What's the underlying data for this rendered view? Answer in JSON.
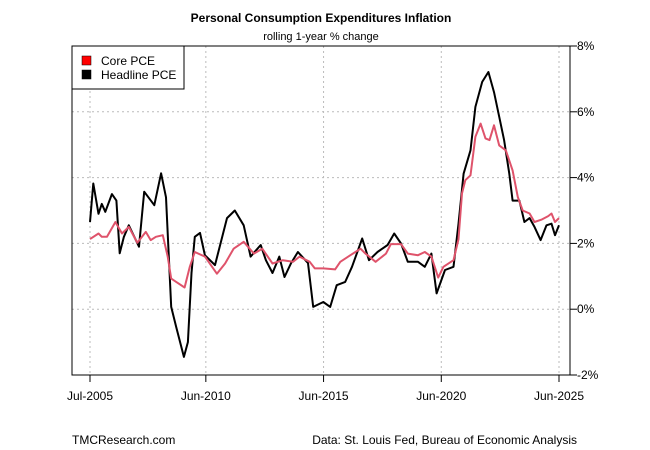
{
  "chart_data": {
    "type": "line",
    "title": "Personal Consumption Expenditures Inflation",
    "subtitle": "rolling 1-year % change",
    "xlabel": "",
    "ylabel": "",
    "ylim": [
      -2,
      8
    ],
    "xlim": [
      2005.5,
      2025.42
    ],
    "grid": true,
    "legend_position": "top-left",
    "y_ticks": [
      {
        "v": -2,
        "label": "-2%"
      },
      {
        "v": 0,
        "label": "0%"
      },
      {
        "v": 2,
        "label": "2%"
      },
      {
        "v": 4,
        "label": "4%"
      },
      {
        "v": 6,
        "label": "6%"
      },
      {
        "v": 8,
        "label": "8%"
      }
    ],
    "x_ticks": [
      {
        "v": 2005.5,
        "label": "Jul-2005"
      },
      {
        "v": 2010.42,
        "label": "Jun-2010"
      },
      {
        "v": 2015.42,
        "label": "Jun-2015"
      },
      {
        "v": 2020.42,
        "label": "Jun-2020"
      },
      {
        "v": 2025.42,
        "label": "Jun-2025"
      }
    ],
    "series": [
      {
        "name": "Core PCE",
        "color": "#DF536B",
        "legend_color": "#FF0000",
        "x": [
          2005.5,
          2005.86,
          2006.0,
          2006.22,
          2006.58,
          2006.86,
          2007.15,
          2007.51,
          2007.87,
          2008.08,
          2008.3,
          2008.59,
          2008.8,
          2008.95,
          2009.16,
          2009.52,
          2009.74,
          2009.95,
          2010.38,
          2010.89,
          2011.24,
          2011.6,
          2012.03,
          2012.46,
          2012.82,
          2013.25,
          2013.69,
          2014.12,
          2014.4,
          2014.83,
          2015.05,
          2015.41,
          2015.91,
          2016.13,
          2016.56,
          2016.99,
          2017.2,
          2017.63,
          2018.07,
          2018.28,
          2018.71,
          2019.0,
          2019.43,
          2019.72,
          2020.0,
          2020.29,
          2020.51,
          2020.94,
          2021.15,
          2021.3,
          2021.44,
          2021.66,
          2021.87,
          2022.09,
          2022.3,
          2022.47,
          2022.66,
          2022.88,
          2023.16,
          2023.45,
          2023.67,
          2023.88,
          2024.17,
          2024.38,
          2024.67,
          2024.96,
          2025.1,
          2025.25,
          2025.42
        ],
        "values": [
          2.13,
          2.3,
          2.2,
          2.2,
          2.65,
          2.3,
          2.5,
          2.02,
          2.35,
          2.1,
          2.2,
          2.25,
          1.6,
          0.93,
          0.83,
          0.66,
          1.29,
          1.74,
          1.6,
          1.08,
          1.39,
          1.84,
          2.05,
          1.69,
          1.84,
          1.39,
          1.49,
          1.44,
          1.6,
          1.44,
          1.24,
          1.24,
          1.21,
          1.44,
          1.64,
          1.84,
          1.69,
          1.44,
          1.69,
          1.98,
          1.98,
          1.69,
          1.64,
          1.74,
          1.6,
          0.96,
          1.29,
          1.49,
          2.13,
          3.52,
          3.92,
          4.07,
          5.24,
          5.64,
          5.19,
          5.14,
          5.59,
          4.98,
          4.83,
          4.22,
          3.41,
          3.0,
          2.91,
          2.65,
          2.72,
          2.83,
          2.91,
          2.65,
          2.77
        ]
      },
      {
        "name": "Headline PCE",
        "color": "#000000",
        "legend_color": "#000000",
        "x": [
          2005.5,
          2005.64,
          2005.86,
          2006.0,
          2006.15,
          2006.43,
          2006.62,
          2006.76,
          2006.94,
          2007.15,
          2007.58,
          2007.8,
          2008.23,
          2008.52,
          2008.73,
          2008.95,
          2009.16,
          2009.49,
          2009.66,
          2009.81,
          2009.95,
          2010.17,
          2010.38,
          2010.81,
          2011.32,
          2011.65,
          2012.03,
          2012.32,
          2012.75,
          2012.97,
          2013.25,
          2013.54,
          2013.76,
          2014.04,
          2014.33,
          2014.76,
          2014.98,
          2015.41,
          2015.7,
          2015.98,
          2016.34,
          2016.63,
          2017.06,
          2017.35,
          2017.71,
          2018.14,
          2018.42,
          2018.71,
          2019.0,
          2019.43,
          2019.72,
          2020.0,
          2020.22,
          2020.58,
          2020.94,
          2021.15,
          2021.37,
          2021.66,
          2021.87,
          2022.16,
          2022.42,
          2022.66,
          2022.88,
          2023.09,
          2023.31,
          2023.45,
          2023.74,
          2023.95,
          2024.17,
          2024.38,
          2024.64,
          2024.89,
          2025.1,
          2025.25,
          2025.42
        ],
        "values": [
          2.65,
          3.82,
          2.9,
          3.2,
          2.96,
          3.5,
          3.3,
          1.7,
          2.2,
          2.55,
          1.9,
          3.57,
          3.16,
          4.13,
          3.4,
          0.07,
          -0.54,
          -1.45,
          -1.0,
          1.1,
          2.2,
          2.32,
          1.64,
          1.34,
          2.77,
          3.0,
          2.55,
          1.6,
          1.95,
          1.49,
          1.1,
          1.6,
          0.98,
          1.4,
          1.74,
          1.4,
          0.07,
          0.22,
          0.07,
          0.73,
          0.83,
          1.29,
          2.15,
          1.49,
          1.74,
          1.95,
          2.3,
          2.0,
          1.44,
          1.44,
          1.29,
          1.69,
          0.48,
          1.19,
          1.29,
          2.6,
          4.12,
          4.83,
          6.15,
          6.91,
          7.21,
          6.6,
          5.85,
          5.14,
          4.12,
          3.3,
          3.3,
          2.65,
          2.77,
          2.5,
          2.1,
          2.55,
          2.6,
          2.25,
          2.55
        ]
      }
    ]
  },
  "footer": {
    "left": "TMCResearch.com",
    "right": "Data: St. Louis Fed, Bureau of Economic Analysis"
  }
}
